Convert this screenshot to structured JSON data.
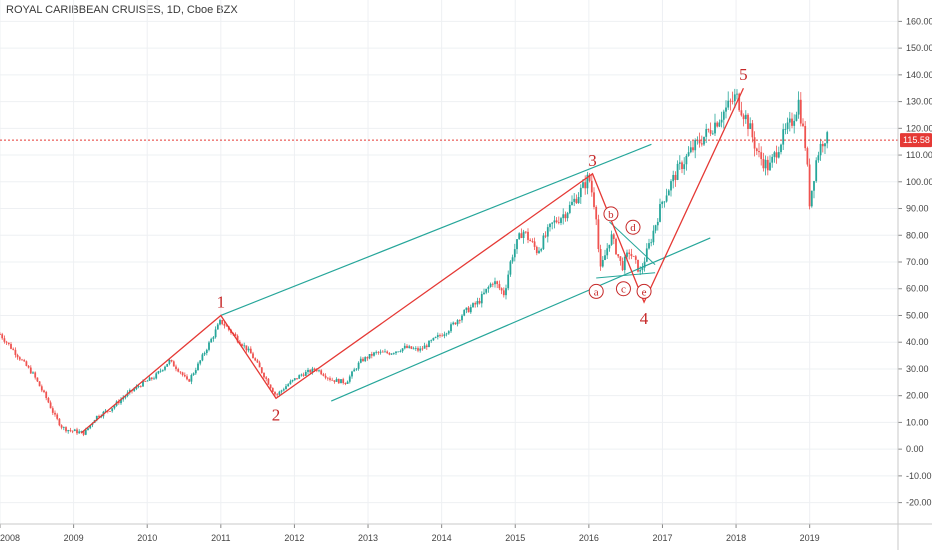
{
  "header": {
    "title": "ROYAL CARIBBEAN CRUISES, 1D, Cboe BZX"
  },
  "colors": {
    "wave_line": "#e53935",
    "channel_line": "#26a69a",
    "price_line": "#e53935",
    "candle_up": "#26a69a",
    "candle_down": "#ef5350",
    "grid": "#eef0f3",
    "label": "#c62828"
  },
  "chart_data": {
    "type": "candlestick",
    "y_ticks": [
      160,
      150,
      140,
      130,
      120,
      110,
      100,
      90,
      80,
      70,
      60,
      50,
      40,
      30,
      20,
      10,
      0,
      -10,
      -20
    ],
    "y_tick_labels": [
      "160.00",
      "150.00",
      "140.00",
      "130.00",
      "120.00",
      "110.00",
      "100.00",
      "90.00",
      "80.00",
      "70.00",
      "60.00",
      "50.00",
      "40.00",
      "30.00",
      "20.00",
      "10.00",
      "0.00",
      "-10.00",
      "-20.00"
    ],
    "x_ticks": [
      2008,
      2009,
      2010,
      2011,
      2012,
      2013,
      2014,
      2015,
      2016,
      2017,
      2018,
      2019
    ],
    "x_tick_labels": [
      "2008",
      "2009",
      "2010",
      "2011",
      "2012",
      "2013",
      "2014",
      "2015",
      "2016",
      "2017",
      "2018",
      "2019"
    ],
    "ylim": [
      -28,
      168
    ],
    "xlim": [
      2008.0,
      2020.2
    ],
    "last_price": 115.58,
    "last_price_label": "115.58",
    "price_path": [
      [
        2008.0,
        43
      ],
      [
        2008.15,
        38
      ],
      [
        2008.3,
        33
      ],
      [
        2008.45,
        28
      ],
      [
        2008.55,
        23
      ],
      [
        2008.65,
        18
      ],
      [
        2008.75,
        12
      ],
      [
        2008.85,
        8
      ],
      [
        2008.95,
        7
      ],
      [
        2009.15,
        6
      ],
      [
        2009.3,
        12
      ],
      [
        2009.5,
        15
      ],
      [
        2009.7,
        20
      ],
      [
        2009.9,
        24
      ],
      [
        2010.1,
        27
      ],
      [
        2010.3,
        33
      ],
      [
        2010.45,
        29
      ],
      [
        2010.55,
        25
      ],
      [
        2010.7,
        32
      ],
      [
        2010.85,
        40
      ],
      [
        2011.0,
        48
      ],
      [
        2011.2,
        42
      ],
      [
        2011.4,
        36
      ],
      [
        2011.6,
        27
      ],
      [
        2011.75,
        20
      ],
      [
        2011.9,
        24
      ],
      [
        2012.1,
        28
      ],
      [
        2012.3,
        30
      ],
      [
        2012.5,
        26
      ],
      [
        2012.7,
        25
      ],
      [
        2012.9,
        33
      ],
      [
        2013.1,
        36
      ],
      [
        2013.3,
        36
      ],
      [
        2013.5,
        38
      ],
      [
        2013.7,
        37
      ],
      [
        2013.9,
        41
      ],
      [
        2014.1,
        45
      ],
      [
        2014.3,
        51
      ],
      [
        2014.5,
        55
      ],
      [
        2014.7,
        63
      ],
      [
        2014.85,
        58
      ],
      [
        2014.95,
        72
      ],
      [
        2015.1,
        82
      ],
      [
        2015.3,
        74
      ],
      [
        2015.5,
        84
      ],
      [
        2015.7,
        89
      ],
      [
        2015.9,
        97
      ],
      [
        2016.0,
        102
      ],
      [
        2016.1,
        88
      ],
      [
        2016.15,
        66
      ],
      [
        2016.3,
        80
      ],
      [
        2016.45,
        68
      ],
      [
        2016.55,
        74
      ],
      [
        2016.7,
        66
      ],
      [
        2016.85,
        79
      ],
      [
        2017.0,
        93
      ],
      [
        2017.2,
        104
      ],
      [
        2017.4,
        112
      ],
      [
        2017.6,
        118
      ],
      [
        2017.8,
        125
      ],
      [
        2018.0,
        132
      ],
      [
        2018.15,
        123
      ],
      [
        2018.3,
        110
      ],
      [
        2018.45,
        105
      ],
      [
        2018.6,
        115
      ],
      [
        2018.75,
        122
      ],
      [
        2018.85,
        130
      ],
      [
        2018.95,
        112
      ],
      [
        2019.0,
        92
      ],
      [
        2019.1,
        110
      ],
      [
        2019.2,
        117
      ],
      [
        2019.25,
        115.58
      ]
    ],
    "wave_path": [
      [
        2009.1,
        6
      ],
      [
        2011.0,
        50
      ],
      [
        2011.75,
        19
      ],
      [
        2016.05,
        103
      ],
      [
        2016.75,
        55
      ],
      [
        2018.1,
        135
      ]
    ],
    "wave_labels": [
      {
        "text": "1",
        "x": 2011.0,
        "y": 50,
        "pos": "above"
      },
      {
        "text": "2",
        "x": 2011.75,
        "y": 19,
        "pos": "below"
      },
      {
        "text": "3",
        "x": 2016.05,
        "y": 103,
        "pos": "above"
      },
      {
        "text": "4",
        "x": 2016.75,
        "y": 55,
        "pos": "below"
      },
      {
        "text": "5",
        "x": 2018.1,
        "y": 135,
        "pos": "above"
      }
    ],
    "sub_labels": [
      {
        "text": "a",
        "x": 2016.1,
        "y": 59
      },
      {
        "text": "b",
        "x": 2016.3,
        "y": 88
      },
      {
        "text": "c",
        "x": 2016.47,
        "y": 60
      },
      {
        "text": "d",
        "x": 2016.6,
        "y": 83
      },
      {
        "text": "e",
        "x": 2016.75,
        "y": 59
      }
    ],
    "channel_lines": [
      [
        [
          2011.0,
          50
        ],
        [
          2016.85,
          114
        ]
      ],
      [
        [
          2012.5,
          18
        ],
        [
          2017.65,
          79
        ]
      ]
    ],
    "triangle_lines": [
      [
        [
          2016.28,
          85
        ],
        [
          2016.9,
          69
        ]
      ],
      [
        [
          2016.1,
          64
        ],
        [
          2016.9,
          66
        ]
      ]
    ]
  }
}
